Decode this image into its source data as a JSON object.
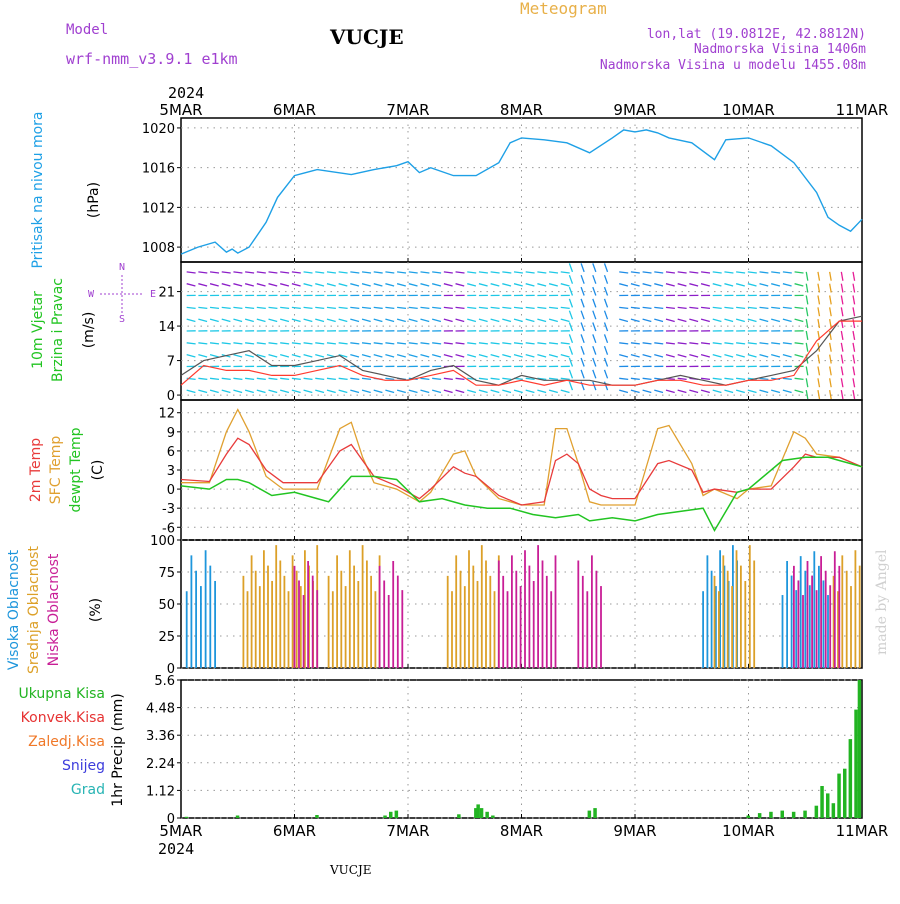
{
  "header": {
    "model_label": "Model",
    "model_name": "wrf-nmm_v3.9.1  e1km",
    "station": "VUCJE",
    "product": "Meteogram",
    "coords": "lon,lat (19.0812E, 42.8812N)",
    "elevation": "Nadmorska Visina 1406m",
    "model_elevation": "Nadmorska Visina u modelu 1455.08m",
    "year": "2024",
    "footer_station": "VUCJE",
    "credit": "made by Angel"
  },
  "colors": {
    "pressure": "#1ea0e6",
    "wind_speed": "#555555",
    "gust": "#ff3b2f",
    "temp2m": "#e83b3b",
    "sfc_temp": "#e0a030",
    "dewpoint": "#22c422",
    "high_cloud": "#1e96dc",
    "mid_cloud": "#dca028",
    "low_cloud": "#c81e96",
    "total_precip": "#22b422",
    "conv_precip": "#e63232",
    "frozen_precip": "#f07828",
    "snow": "#3c3cdc",
    "graupel": "#28b4b4",
    "text_purple": "#a040d0",
    "text_orange": "#e8b048"
  },
  "chart_data": [
    {
      "type": "line",
      "panel": "pressure",
      "ylabel_main": "Pritisak na nivou mora",
      "ylabel_unit": "(hPa)",
      "x_labels": [
        "5MAR",
        "6MAR",
        "7MAR",
        "8MAR",
        "9MAR",
        "10MAR",
        "11MAR"
      ],
      "ylim": [
        1006.5,
        1021
      ],
      "yticks": [
        1008,
        1012,
        1016,
        1020
      ],
      "series": [
        {
          "values_x": [
            0,
            0.15,
            0.3,
            0.4,
            0.45,
            0.5,
            0.6,
            0.75,
            0.85,
            1.0,
            1.1,
            1.2,
            1.5,
            1.7,
            1.9,
            2.0,
            2.1,
            2.2,
            2.4,
            2.6,
            2.8,
            2.9,
            3.0,
            3.2,
            3.4,
            3.6,
            3.8,
            3.9,
            4.0,
            4.1,
            4.2,
            4.3,
            4.5,
            4.7,
            4.8,
            5.0,
            5.2,
            5.4,
            5.6,
            5.7,
            5.8,
            5.9,
            6.0
          ],
          "values_y": [
            1007.3,
            1008.0,
            1008.5,
            1007.5,
            1007.8,
            1007.4,
            1008.0,
            1010.5,
            1013.0,
            1015.2,
            1015.5,
            1015.8,
            1015.3,
            1015.8,
            1016.2,
            1016.6,
            1015.5,
            1016.0,
            1015.2,
            1015.2,
            1016.5,
            1018.5,
            1019.0,
            1018.8,
            1018.5,
            1017.5,
            1019.0,
            1019.8,
            1019.6,
            1019.8,
            1019.5,
            1019.0,
            1018.5,
            1016.8,
            1018.8,
            1019.0,
            1018.2,
            1016.5,
            1013.5,
            1011.0,
            1010.2,
            1009.6,
            1010.8
          ]
        }
      ]
    },
    {
      "type": "barbs",
      "panel": "wind",
      "ylabel_main": "10m Vjetar",
      "ylabel_sub": "Brzina i Pravac",
      "ylabel_unit": "(m/s)",
      "compass": {
        "n": "N",
        "w": "W",
        "e": "E",
        "s": "S"
      },
      "ylim": [
        -1,
        27
      ],
      "yticks": [
        0,
        7,
        14,
        21
      ],
      "series": [
        {
          "name": "speed",
          "values_x": [
            0,
            0.2,
            0.4,
            0.6,
            0.8,
            1.0,
            1.2,
            1.4,
            1.6,
            1.8,
            2.0,
            2.2,
            2.4,
            2.6,
            2.8,
            3.0,
            3.2,
            3.4,
            3.6,
            3.8,
            4.0,
            4.2,
            4.4,
            4.6,
            4.8,
            5.0,
            5.2,
            5.4,
            5.6,
            5.8,
            6.0
          ],
          "values_y": [
            4,
            7,
            8,
            9,
            6,
            6,
            7,
            8,
            5,
            4,
            3,
            5,
            6,
            3,
            2,
            4,
            3,
            3,
            3,
            2,
            2,
            3,
            4,
            3,
            2,
            3,
            4,
            5,
            9,
            15,
            16
          ]
        },
        {
          "name": "gust",
          "values_x": [
            0,
            0.2,
            0.4,
            0.6,
            0.8,
            1.0,
            1.2,
            1.4,
            1.6,
            1.8,
            2.0,
            2.2,
            2.4,
            2.6,
            2.8,
            3.0,
            3.2,
            3.4,
            3.6,
            3.8,
            4.0,
            4.2,
            4.4,
            4.6,
            4.8,
            5.0,
            5.2,
            5.4,
            5.6,
            5.8,
            6.0
          ],
          "values_y": [
            2,
            6,
            5,
            5,
            4,
            4,
            5,
            6,
            4,
            3,
            3,
            4,
            5,
            2,
            2,
            3,
            2,
            3,
            2,
            2,
            2,
            3,
            3,
            2,
            2,
            3,
            3,
            4,
            11,
            15,
            15
          ]
        }
      ]
    },
    {
      "type": "line",
      "panel": "temperature",
      "ylabel_main": "2m Temp",
      "ylabel_sub": "SFC Temp",
      "ylabel_sub2": "dewpt Temp",
      "ylabel_unit": "(C)",
      "ylim": [
        -8,
        14
      ],
      "yticks": [
        -6,
        -3,
        0,
        3,
        6,
        9,
        12
      ],
      "series": [
        {
          "name": "2m Temp",
          "values_x": [
            0,
            0.25,
            0.4,
            0.5,
            0.6,
            0.75,
            0.9,
            1.0,
            1.2,
            1.4,
            1.5,
            1.6,
            1.7,
            1.9,
            2.1,
            2.2,
            2.4,
            2.5,
            2.6,
            2.8,
            3.0,
            3.2,
            3.3,
            3.4,
            3.5,
            3.6,
            3.7,
            3.8,
            4.0,
            4.2,
            4.3,
            4.5,
            4.6,
            4.7,
            4.9,
            5.0,
            5.2,
            5.4,
            5.5,
            5.6,
            5.8,
            6.0
          ],
          "values_y": [
            1.5,
            1.2,
            5.5,
            8.0,
            7.0,
            3.0,
            1.0,
            1.0,
            1.0,
            6.0,
            7.0,
            4.5,
            2.0,
            0.5,
            -1.5,
            0.0,
            3.5,
            2.5,
            2.0,
            -1.0,
            -2.5,
            -2.0,
            4.5,
            5.5,
            4.0,
            0.0,
            -1.0,
            -1.5,
            -1.5,
            4.0,
            4.5,
            3.0,
            -0.5,
            0.0,
            -0.5,
            0.0,
            0.0,
            3.5,
            5.5,
            5.0,
            5.0,
            3.5
          ]
        },
        {
          "name": "SFC Temp",
          "values_x": [
            0,
            0.25,
            0.4,
            0.5,
            0.6,
            0.75,
            0.9,
            1.0,
            1.2,
            1.4,
            1.5,
            1.6,
            1.7,
            1.9,
            2.1,
            2.2,
            2.4,
            2.5,
            2.6,
            2.8,
            3.0,
            3.2,
            3.3,
            3.4,
            3.5,
            3.6,
            3.7,
            3.8,
            4.0,
            4.2,
            4.3,
            4.5,
            4.6,
            4.7,
            4.9,
            5.0,
            5.2,
            5.4,
            5.5,
            5.6,
            5.8,
            6.0
          ],
          "values_y": [
            1.0,
            1.0,
            9.0,
            12.5,
            9.0,
            2.0,
            0.0,
            0.0,
            0.0,
            9.5,
            10.5,
            5.0,
            1.0,
            0.0,
            -2.0,
            -0.5,
            5.5,
            6.0,
            2.0,
            -1.5,
            -2.5,
            -2.5,
            9.5,
            9.5,
            4.0,
            -2.0,
            -2.5,
            -2.5,
            -2.5,
            9.5,
            10.0,
            4.0,
            -1.0,
            0.0,
            -1.5,
            0.0,
            0.5,
            9.0,
            8.0,
            5.5,
            5.0,
            3.5
          ]
        },
        {
          "name": "dewpt Temp",
          "values_x": [
            0,
            0.25,
            0.4,
            0.5,
            0.6,
            0.8,
            1.0,
            1.2,
            1.3,
            1.5,
            1.7,
            1.9,
            2.1,
            2.3,
            2.5,
            2.7,
            2.9,
            3.1,
            3.3,
            3.5,
            3.6,
            3.8,
            4.0,
            4.2,
            4.4,
            4.6,
            4.7,
            4.9,
            5.0,
            5.1,
            5.3,
            5.5,
            5.7,
            5.8,
            6.0
          ],
          "values_y": [
            0.5,
            0.0,
            1.5,
            1.5,
            1.0,
            -1.0,
            -0.5,
            -1.5,
            -2.0,
            2.0,
            2.0,
            1.5,
            -2.0,
            -1.5,
            -2.5,
            -3.0,
            -3.0,
            -4.0,
            -4.5,
            -4.0,
            -5.0,
            -4.5,
            -5.0,
            -4.0,
            -3.5,
            -3.0,
            -6.5,
            -0.5,
            0.0,
            1.5,
            4.5,
            5.0,
            5.0,
            4.5,
            3.5
          ]
        }
      ]
    },
    {
      "type": "bar",
      "panel": "cloud",
      "ylabel_main": "Visoka Oblacnost",
      "ylabel_sub": "Srednja Oblacnost",
      "ylabel_sub2": "Niska Oblacnost",
      "ylabel_unit": "(%)",
      "ylim": [
        0,
        100
      ],
      "yticks": [
        0,
        25,
        50,
        75,
        100
      ],
      "series": [
        {
          "name": "Visoka Oblacnost",
          "blocks": [
            [
              0.05,
              0.3,
              100
            ],
            [
              4.6,
              4.9,
              100
            ],
            [
              5.3,
              5.7,
              95
            ]
          ]
        },
        {
          "name": "Srednja Oblacnost",
          "blocks": [
            [
              0.55,
              1.2,
              100
            ],
            [
              1.3,
              1.75,
              100
            ],
            [
              2.35,
              2.8,
              100
            ],
            [
              4.7,
              5.05,
              100
            ],
            [
              5.75,
              5.98,
              100
            ]
          ]
        },
        {
          "name": "Niska Oblacnost",
          "blocks": [
            [
              1.0,
              1.2,
              95
            ],
            [
              1.75,
              1.95,
              95
            ],
            [
              2.8,
              3.3,
              100
            ],
            [
              3.5,
              3.7,
              100
            ],
            [
              5.4,
              5.8,
              95
            ]
          ]
        }
      ]
    },
    {
      "type": "bar",
      "panel": "precip",
      "legend": [
        "Ukupna Kisa",
        "Konvek.Kisa",
        "Zaledj.Kisa",
        "Snijeg",
        "Grad"
      ],
      "ylabel_unit": "1hr Precip (mm)",
      "ylim": [
        0,
        5.6
      ],
      "yticks": [
        0,
        1.12,
        2.24,
        3.36,
        4.48,
        5.6
      ],
      "series": [
        {
          "name": "Ukupna Kisa",
          "values_x": [
            0.05,
            0.5,
            1.2,
            1.8,
            1.85,
            1.9,
            2.45,
            2.6,
            2.62,
            2.65,
            2.7,
            2.75,
            3.6,
            3.65,
            5.0,
            5.1,
            5.2,
            5.3,
            5.4,
            5.5,
            5.6,
            5.65,
            5.7,
            5.75,
            5.8,
            5.85,
            5.9,
            5.95,
            5.98
          ],
          "values_y": [
            0.05,
            0.1,
            0.12,
            0.1,
            0.25,
            0.3,
            0.15,
            0.4,
            0.55,
            0.4,
            0.25,
            0.1,
            0.3,
            0.4,
            0.1,
            0.2,
            0.25,
            0.3,
            0.25,
            0.3,
            0.5,
            1.3,
            1.0,
            0.6,
            1.8,
            2.0,
            3.2,
            4.4,
            5.6
          ]
        }
      ]
    }
  ]
}
